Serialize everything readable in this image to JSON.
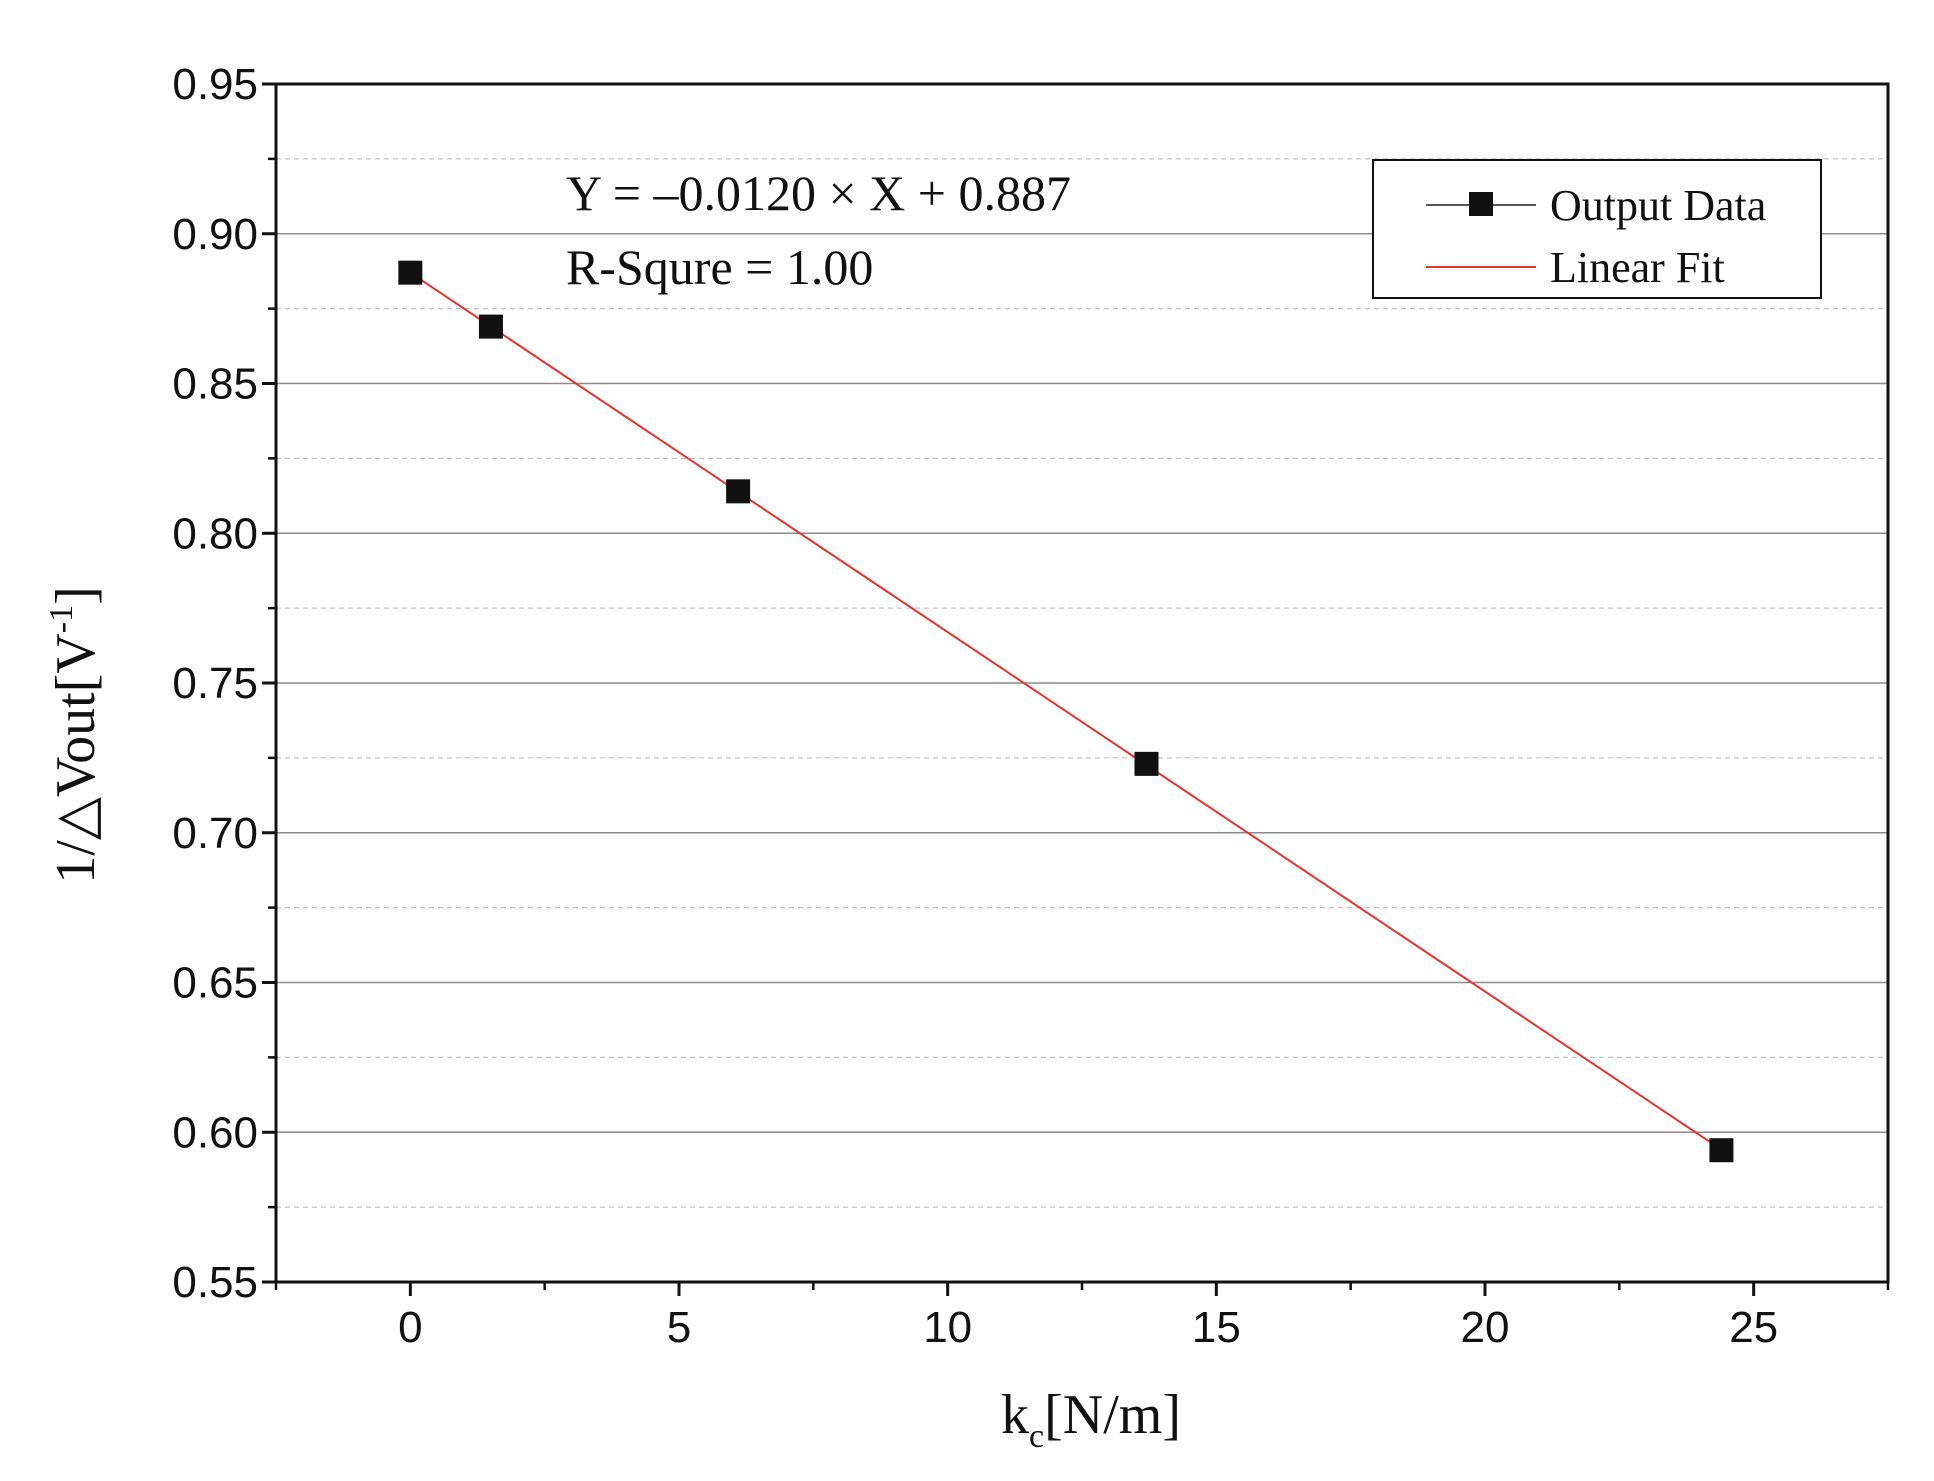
{
  "chart_data": {
    "type": "scatter",
    "xlim": [
      -2.5,
      27.5
    ],
    "ylim": [
      0.55,
      0.95
    ],
    "x_ticks": [
      "0",
      "5",
      "10",
      "15",
      "20",
      "25"
    ],
    "x_tick_values": [
      0,
      5,
      10,
      15,
      20,
      25
    ],
    "y_ticks": [
      "0.55",
      "0.60",
      "0.65",
      "0.70",
      "0.75",
      "0.80",
      "0.85",
      "0.90",
      "0.95"
    ],
    "y_tick_values": [
      0.55,
      0.6,
      0.65,
      0.7,
      0.75,
      0.8,
      0.85,
      0.9,
      0.95
    ],
    "xlabel_main": "k",
    "xlabel_sub": "c",
    "xlabel_rest": "[N/m]",
    "ylabel_main": "1/△Vout[V",
    "ylabel_sup": "-1",
    "ylabel_end": "]",
    "series": [
      {
        "name": "Output Data",
        "marker": "square",
        "color": "#111111",
        "x": [
          0,
          1.5,
          6.1,
          13.7,
          24.4
        ],
        "y": [
          0.887,
          0.869,
          0.814,
          0.723,
          0.594
        ]
      },
      {
        "name": "Linear Fit",
        "line": "solid",
        "color": "#e8322b",
        "x": [
          0,
          24.4
        ],
        "y": [
          0.887,
          0.5942
        ]
      }
    ],
    "annotations": {
      "equation": "Y = –0.0120 × X + 0.887",
      "r_square": "R-Squre = 1.00"
    },
    "legend_position": "top-right",
    "grid": "horizontal",
    "grid_color": "#8a8a8a",
    "minor_grid_color": "#c4c4c4"
  }
}
